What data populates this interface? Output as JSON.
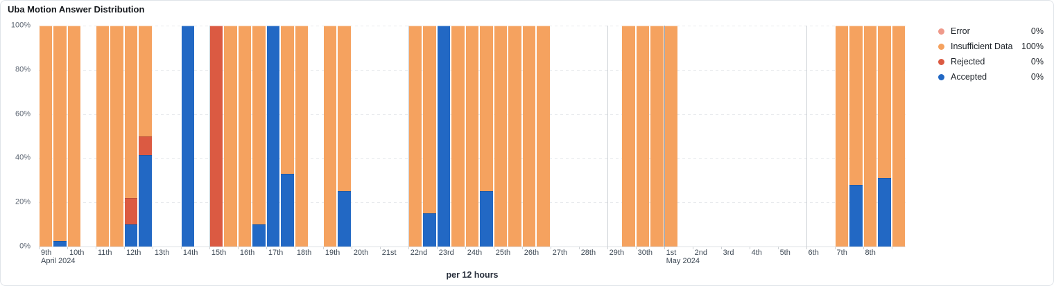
{
  "panel": {
    "title": "Uba Motion Answer Distribution"
  },
  "chart_data": {
    "type": "bar",
    "stacked": true,
    "unit": "percent-of-total",
    "title": "Uba Motion Answer Distribution",
    "xlabel": "per 12 hours",
    "ylim": [
      0,
      100
    ],
    "y_tick_labels": [
      "0%",
      "20%",
      "40%",
      "60%",
      "80%",
      "100%"
    ],
    "x_tick_labels": [
      "9th",
      "10th",
      "11th",
      "12th",
      "13th",
      "14th",
      "15th",
      "16th",
      "17th",
      "18th",
      "19th",
      "20th",
      "21st",
      "22nd",
      "23rd",
      "24th",
      "25th",
      "26th",
      "27th",
      "28th",
      "29th",
      "30th",
      "1st",
      "2nd",
      "3rd",
      "4th",
      "5th",
      "6th",
      "7th",
      "8th"
    ],
    "month_labels": [
      {
        "tick_index": 0,
        "label": "April 2024"
      },
      {
        "tick_index": 22,
        "label": "May 2024"
      }
    ],
    "bars_per_day": 2,
    "slots_total": 61,
    "week_gridline_tick_indices": [
      6,
      13,
      20,
      27
    ],
    "month_gridline_tick_indices": [
      22
    ],
    "legend_position": "right",
    "grid": "dashed-horizontal",
    "series": [
      {
        "key": "error",
        "label": "Error",
        "legend_value": "0%",
        "color": "#EF9A8B"
      },
      {
        "key": "insufficient",
        "label": "Insufficient Data",
        "legend_value": "100%",
        "color": "#F5A25F"
      },
      {
        "key": "rejected",
        "label": "Rejected",
        "legend_value": "0%",
        "color": "#DB5A42"
      },
      {
        "key": "accepted",
        "label": "Accepted",
        "legend_value": "0%",
        "color": "#2268C4"
      }
    ],
    "stack_order_bottom_to_top": [
      "accepted",
      "rejected",
      "insufficient",
      "error"
    ],
    "bars": [
      {
        "slot": 0,
        "date": "9th",
        "half": "AM",
        "values": {
          "insufficient": 100
        }
      },
      {
        "slot": 1,
        "date": "9th",
        "half": "PM",
        "values": {
          "accepted": 2.5,
          "insufficient": 97.5
        }
      },
      {
        "slot": 2,
        "date": "10th",
        "half": "AM",
        "values": {
          "insufficient": 100
        }
      },
      {
        "slot": 4,
        "date": "11th",
        "half": "AM",
        "values": {
          "insufficient": 100
        }
      },
      {
        "slot": 5,
        "date": "11th",
        "half": "PM",
        "values": {
          "insufficient": 100
        }
      },
      {
        "slot": 6,
        "date": "12th",
        "half": "AM",
        "values": {
          "accepted": 10,
          "rejected": 12,
          "insufficient": 78
        }
      },
      {
        "slot": 7,
        "date": "12th",
        "half": "PM",
        "values": {
          "accepted": 41.5,
          "rejected": 8.5,
          "insufficient": 50
        }
      },
      {
        "slot": 10,
        "date": "14th",
        "half": "AM",
        "values": {
          "accepted": 100
        }
      },
      {
        "slot": 12,
        "date": "15th",
        "half": "AM",
        "values": {
          "rejected": 100
        }
      },
      {
        "slot": 13,
        "date": "15th",
        "half": "PM",
        "values": {
          "insufficient": 100
        }
      },
      {
        "slot": 14,
        "date": "16th",
        "half": "AM",
        "values": {
          "insufficient": 100
        }
      },
      {
        "slot": 15,
        "date": "16th",
        "half": "PM",
        "values": {
          "accepted": 10,
          "insufficient": 90
        }
      },
      {
        "slot": 16,
        "date": "17th",
        "half": "AM",
        "values": {
          "accepted": 100
        }
      },
      {
        "slot": 17,
        "date": "17th",
        "half": "PM",
        "values": {
          "accepted": 33,
          "insufficient": 67
        }
      },
      {
        "slot": 18,
        "date": "18th",
        "half": "AM",
        "values": {
          "insufficient": 100
        }
      },
      {
        "slot": 20,
        "date": "19th",
        "half": "AM",
        "values": {
          "insufficient": 100
        }
      },
      {
        "slot": 21,
        "date": "19th",
        "half": "PM",
        "values": {
          "accepted": 25,
          "insufficient": 75
        }
      },
      {
        "slot": 26,
        "date": "22nd",
        "half": "AM",
        "values": {
          "insufficient": 100
        }
      },
      {
        "slot": 27,
        "date": "22nd",
        "half": "PM",
        "values": {
          "accepted": 15,
          "insufficient": 85
        }
      },
      {
        "slot": 28,
        "date": "23rd",
        "half": "AM",
        "values": {
          "accepted": 100
        }
      },
      {
        "slot": 29,
        "date": "23rd",
        "half": "PM",
        "values": {
          "insufficient": 100
        }
      },
      {
        "slot": 30,
        "date": "24th",
        "half": "AM",
        "values": {
          "insufficient": 100
        }
      },
      {
        "slot": 31,
        "date": "24th",
        "half": "PM",
        "values": {
          "accepted": 25,
          "insufficient": 75
        }
      },
      {
        "slot": 32,
        "date": "25th",
        "half": "AM",
        "values": {
          "insufficient": 100
        }
      },
      {
        "slot": 33,
        "date": "25th",
        "half": "PM",
        "values": {
          "insufficient": 100
        }
      },
      {
        "slot": 34,
        "date": "26th",
        "half": "AM",
        "values": {
          "insufficient": 100
        }
      },
      {
        "slot": 35,
        "date": "26th",
        "half": "PM",
        "values": {
          "insufficient": 100
        }
      },
      {
        "slot": 41,
        "date": "29th",
        "half": "PM",
        "values": {
          "insufficient": 100
        }
      },
      {
        "slot": 42,
        "date": "30th",
        "half": "AM",
        "values": {
          "insufficient": 100
        }
      },
      {
        "slot": 43,
        "date": "30th",
        "half": "PM",
        "values": {
          "insufficient": 100
        }
      },
      {
        "slot": 44,
        "date": "1st",
        "half": "AM",
        "values": {
          "insufficient": 100
        }
      },
      {
        "slot": 56,
        "date": "7th",
        "half": "AM",
        "values": {
          "insufficient": 100
        }
      },
      {
        "slot": 57,
        "date": "7th",
        "half": "PM",
        "values": {
          "accepted": 28,
          "insufficient": 72
        }
      },
      {
        "slot": 58,
        "date": "8th",
        "half": "AM",
        "values": {
          "insufficient": 100
        }
      },
      {
        "slot": 59,
        "date": "8th",
        "half": "PM",
        "values": {
          "accepted": 31,
          "insufficient": 69
        }
      },
      {
        "slot": 60,
        "date": "9th (May)",
        "half": "AM",
        "values": {
          "insufficient": 100
        }
      }
    ]
  }
}
